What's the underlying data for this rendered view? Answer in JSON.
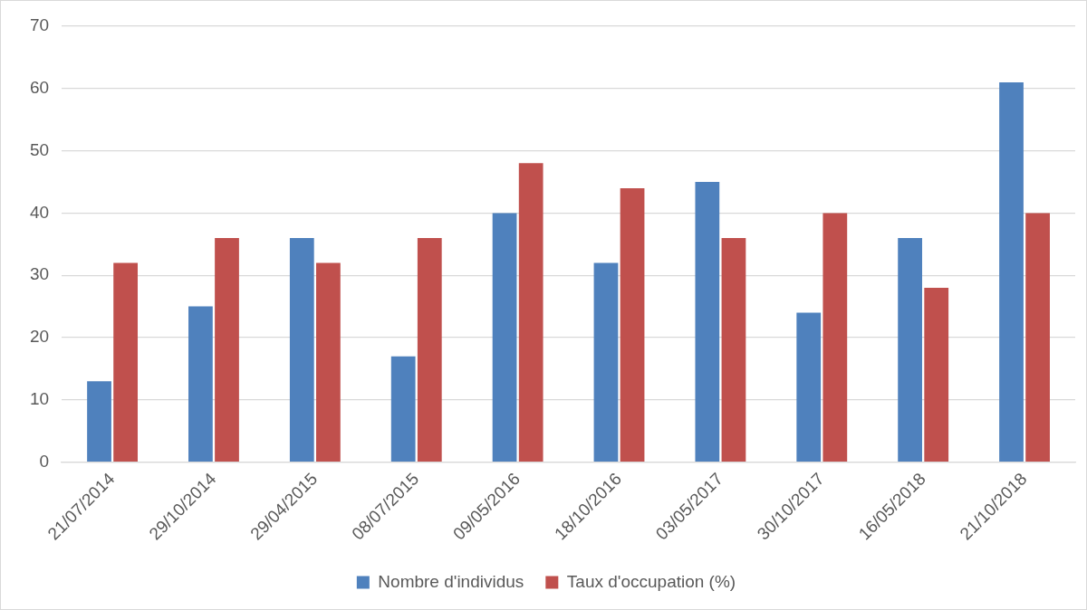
{
  "chart_data": {
    "type": "bar",
    "categories": [
      "21/07/2014",
      "29/10/2014",
      "29/04/2015",
      "08/07/2015",
      "09/05/2016",
      "18/10/2016",
      "03/05/2017",
      "30/10/2017",
      "16/05/2018",
      "21/10/2018"
    ],
    "series": [
      {
        "name": "Nombre d'individus",
        "color": "#4f81bd",
        "values": [
          13,
          25,
          36,
          17,
          40,
          32,
          45,
          24,
          36,
          61
        ]
      },
      {
        "name": "Taux d'occupation (%)",
        "color": "#c0504d",
        "values": [
          32,
          36,
          32,
          36,
          48,
          44,
          36,
          40,
          28,
          40
        ]
      }
    ],
    "ylim": [
      0,
      70
    ],
    "yticks": [
      0,
      10,
      20,
      30,
      40,
      50,
      60,
      70
    ],
    "grid": "y",
    "legend": "bottom"
  }
}
